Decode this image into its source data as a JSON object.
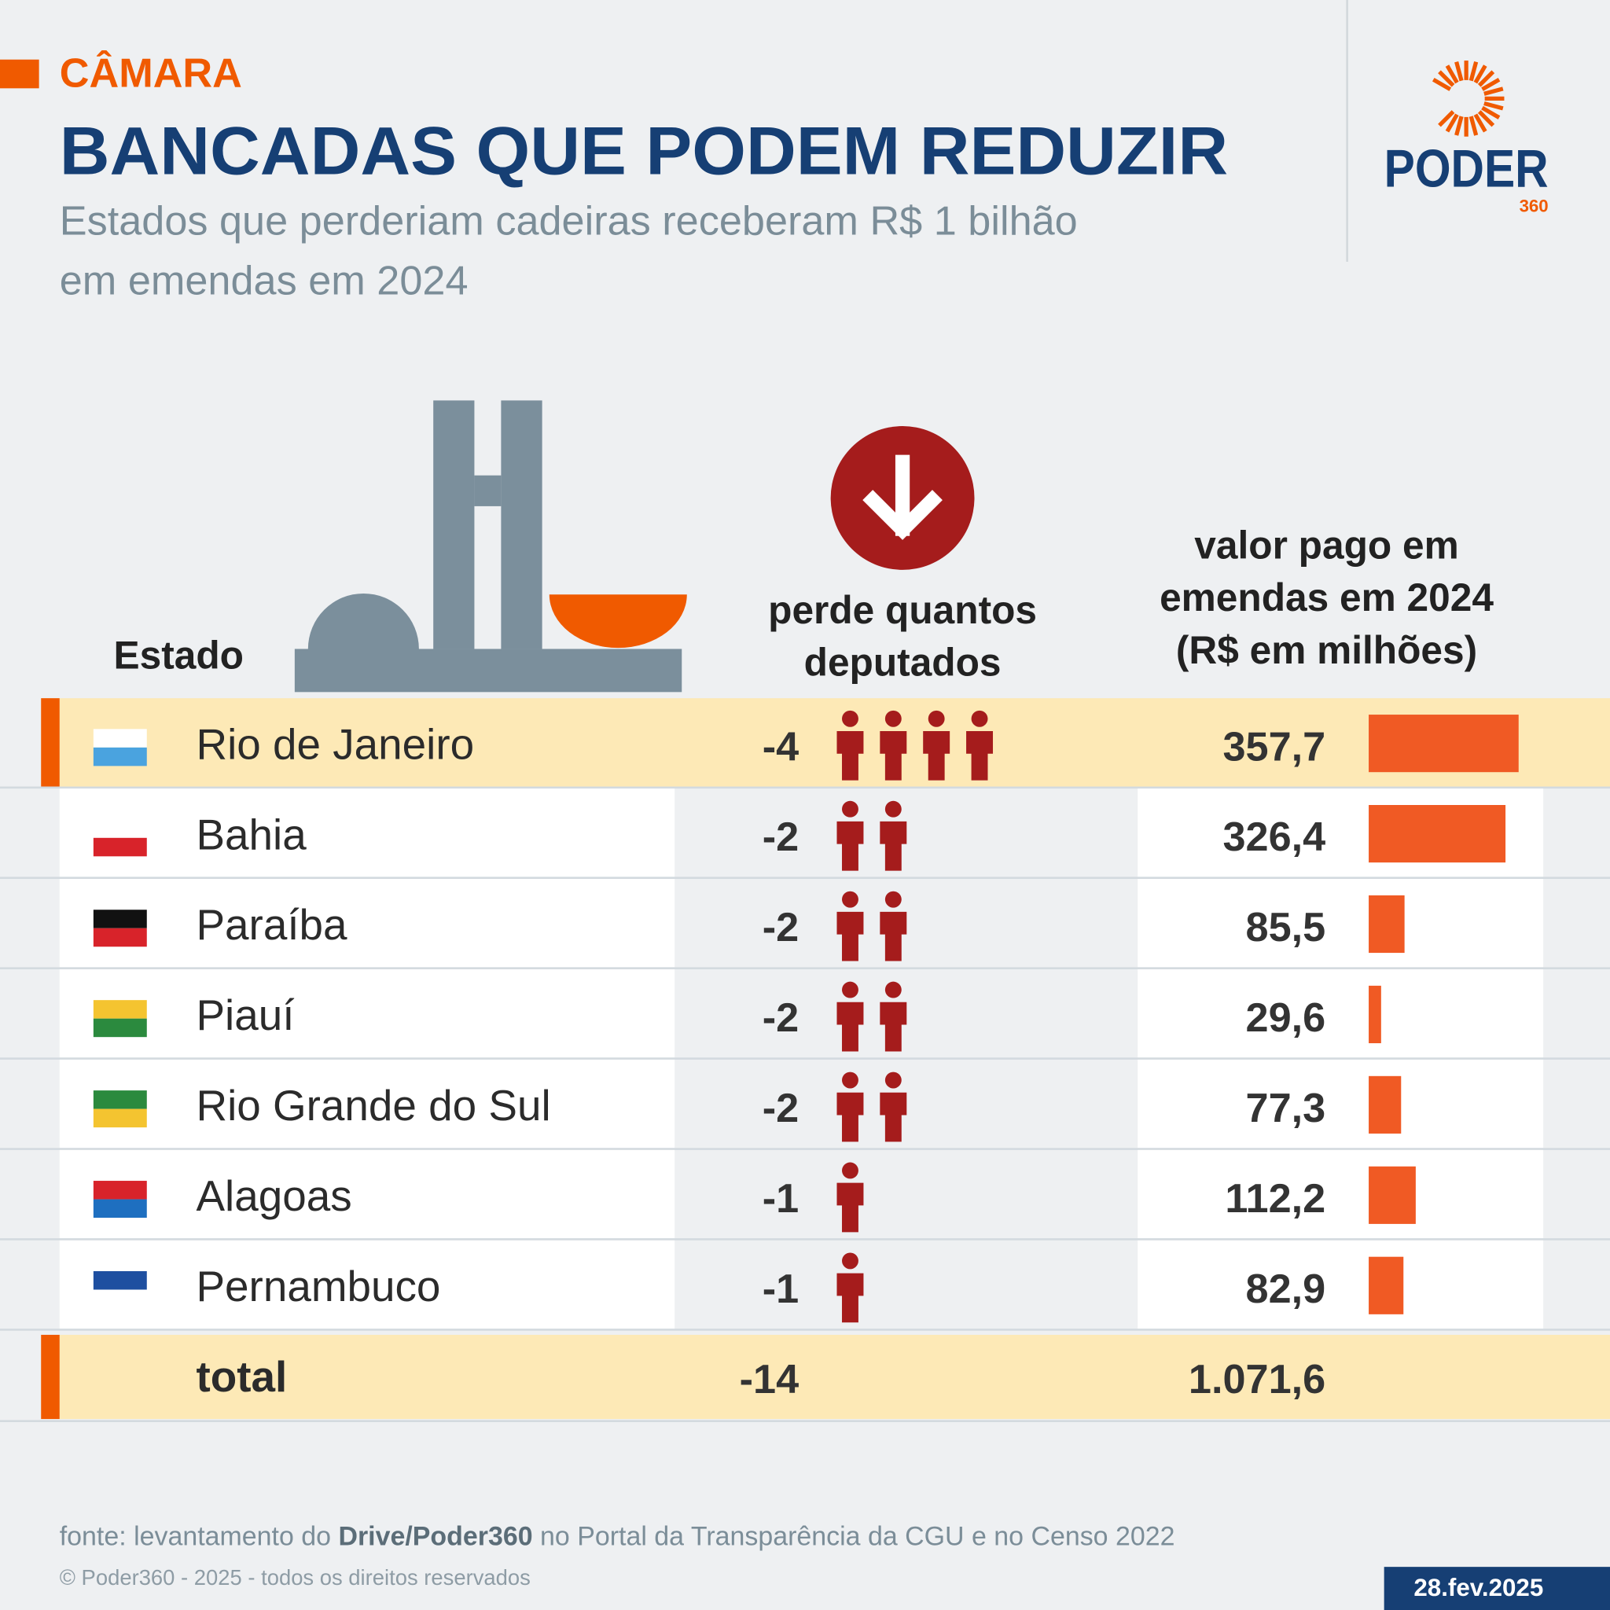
{
  "header": {
    "section": "CÂMARA",
    "title": "BANCADAS QUE PODEM REDUZIR",
    "subtitle_lines": [
      "Estados que perderiam cadeiras receberam R$ 1 bilhão",
      "em emendas em 2024"
    ]
  },
  "logo": {
    "name": "PODER",
    "number": "360"
  },
  "table": {
    "columns": {
      "state": "Estado",
      "seats": [
        "perde quantos",
        "deputados"
      ],
      "value": [
        "valor pago em",
        "emendas em 2024",
        "(R$ em milhões)"
      ]
    },
    "rows": [
      {
        "state": "Rio de Janeiro",
        "seats": -4,
        "value": 357.7,
        "value_label": "357,7",
        "highlight": true
      },
      {
        "state": "Bahia",
        "seats": -2,
        "value": 326.4,
        "value_label": "326,4"
      },
      {
        "state": "Paraíba",
        "seats": -2,
        "value": 85.5,
        "value_label": "85,5"
      },
      {
        "state": "Piauí",
        "seats": -2,
        "value": 29.6,
        "value_label": "29,6"
      },
      {
        "state": "Rio Grande do Sul",
        "seats": -2,
        "value": 77.3,
        "value_label": "77,3"
      },
      {
        "state": "Alagoas",
        "seats": -1,
        "value": 112.2,
        "value_label": "112,2"
      },
      {
        "state": "Pernambuco",
        "seats": -1,
        "value": 82.9,
        "value_label": "82,9"
      }
    ],
    "total": {
      "label": "total",
      "seats": -14,
      "value": 1071.6,
      "value_label": "1.071,6"
    }
  },
  "footer": {
    "source_prefix": "fonte: levantamento do",
    "source_bold": "Drive/Poder360",
    "source_suffix": "no Portal da Transparência da CGU e no Censo 2022",
    "copyright": "© Poder360 - 2025 - todos os direitos reservados",
    "date": "28.fev.2025"
  }
}
